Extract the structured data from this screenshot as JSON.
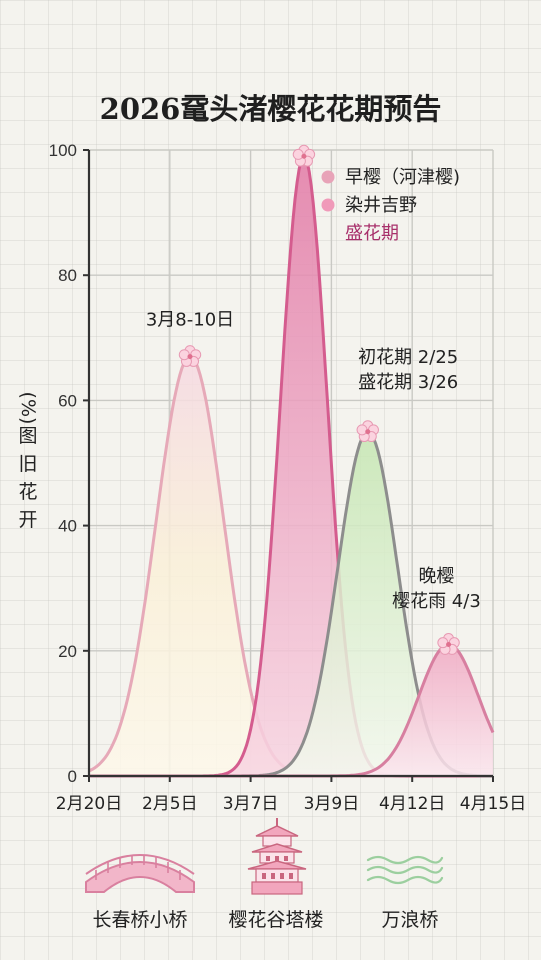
{
  "title": "2026鼋头渚樱花花期预告",
  "chart_data": {
    "type": "area",
    "title": "2026鼋头渚樱花花期预告",
    "ylabel_chars": [
      "(%)",
      "图",
      "旧",
      "花",
      "开"
    ],
    "ylim": [
      0,
      100
    ],
    "yticks": [
      0,
      20,
      40,
      60,
      80,
      100
    ],
    "x_tick_labels": [
      "2月20日",
      "2月5日",
      "3月7日",
      "3月9日",
      "4月12日",
      "4月15日"
    ],
    "grid": true,
    "legend_position": "top-right",
    "legend": [
      {
        "label": "早樱（河津樱)",
        "color": "#e8a3b8"
      },
      {
        "label": "染井吉野",
        "color": "#f09ab9"
      },
      {
        "label": "盛花期",
        "color": "#a8306b"
      }
    ],
    "series": [
      {
        "fill": "#f9eed6",
        "stroke": "#e6a9b8",
        "peak_x": 1.25,
        "peak_y": 67,
        "sigma": 0.42
      },
      {
        "fill": "#ea9cbb",
        "stroke": "#d45c8e",
        "peak_x": 2.66,
        "peak_y": 99,
        "sigma": 0.29
      },
      {
        "fill": "#d9eecb",
        "stroke": "#8d8d8d",
        "peak_x": 3.45,
        "peak_y": 55,
        "sigma": 0.37
      },
      {
        "fill": "#f7c4d5",
        "stroke": "#d77fa0",
        "peak_x": 4.45,
        "peak_y": 21,
        "sigma": 0.37
      }
    ],
    "annotations": [
      {
        "lines": [
          "3月8-10日"
        ],
        "x": 1.25,
        "y": 72
      },
      {
        "lines": [
          "初花期 2/25",
          "盛花期 3/26"
        ],
        "x": 3.95,
        "y": 62
      },
      {
        "lines": [
          "晚樱",
          "樱花雨 4/3"
        ],
        "x": 4.3,
        "y": 27
      }
    ]
  },
  "footer": [
    {
      "label": "长春桥小桥",
      "icon": "bridge-icon"
    },
    {
      "label": "樱花谷塔楼",
      "icon": "pagoda-icon"
    },
    {
      "label": "万浪桥",
      "icon": "waves-icon"
    }
  ]
}
